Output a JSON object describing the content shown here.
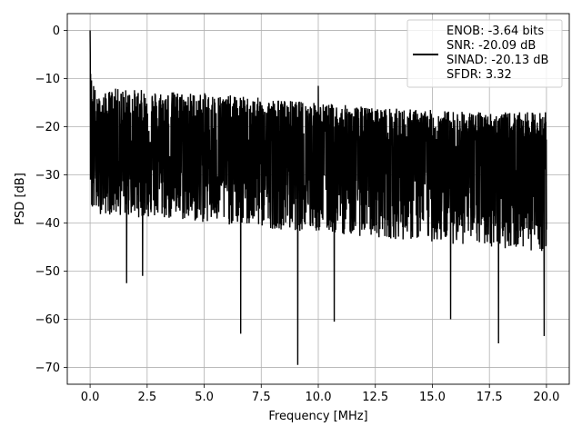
{
  "chart_data": {
    "type": "line",
    "title": "",
    "xlabel": "Frequency [MHz]",
    "ylabel": "PSD [dB]",
    "xlim": [
      -1.0,
      21.0
    ],
    "ylim": [
      -73.5,
      3.5
    ],
    "x_ticks": [
      0.0,
      2.5,
      5.0,
      7.5,
      10.0,
      12.5,
      15.0,
      17.5,
      20.0
    ],
    "x_tick_labels": [
      "0.0",
      "2.5",
      "5.0",
      "7.5",
      "10.0",
      "12.5",
      "15.0",
      "17.5",
      "20.0"
    ],
    "y_ticks": [
      0,
      -10,
      -20,
      -30,
      -40,
      -50,
      -60,
      -70
    ],
    "y_tick_labels": [
      "0",
      "−10",
      "−20",
      "−30",
      "−40",
      "−50",
      "−60",
      "−70"
    ],
    "grid": true,
    "legend_position": "top-right",
    "series": [
      {
        "color": "#000000",
        "legend_lines": [
          "ENOB: -3.64 bits",
          "SNR: -20.09 dB",
          "SINAD: -20.13 dB",
          "SFDR: 3.32"
        ],
        "x_range": [
          0.0,
          20.0
        ],
        "peak_level": 0.0,
        "upper_envelope": [
          [
            0.0,
            0.0
          ],
          [
            0.05,
            -8
          ],
          [
            0.3,
            -14
          ],
          [
            1.0,
            -12
          ],
          [
            3.0,
            -12.5
          ],
          [
            5.0,
            -13
          ],
          [
            7.5,
            -14
          ],
          [
            10.0,
            -15
          ],
          [
            12.5,
            -16
          ],
          [
            15.0,
            -16.5
          ],
          [
            17.5,
            -17
          ],
          [
            20.0,
            -17
          ]
        ],
        "median_level": [
          [
            0.0,
            -24
          ],
          [
            5.0,
            -25
          ],
          [
            10.0,
            -26
          ],
          [
            15.0,
            -27
          ],
          [
            20.0,
            -27
          ]
        ],
        "lower_envelope": [
          [
            0.0,
            -38
          ],
          [
            5.0,
            -40
          ],
          [
            10.0,
            -42
          ],
          [
            15.0,
            -44
          ],
          [
            20.0,
            -46
          ]
        ],
        "notable_dips": [
          [
            1.6,
            -52.5
          ],
          [
            2.3,
            -51
          ],
          [
            6.6,
            -63
          ],
          [
            9.1,
            -69.5
          ],
          [
            10.7,
            -60.5
          ],
          [
            15.8,
            -60
          ],
          [
            17.9,
            -65
          ],
          [
            19.9,
            -63.5
          ]
        ],
        "notable_spikes": [
          [
            10.0,
            -11.5
          ],
          [
            19.95,
            -17
          ]
        ]
      }
    ]
  }
}
